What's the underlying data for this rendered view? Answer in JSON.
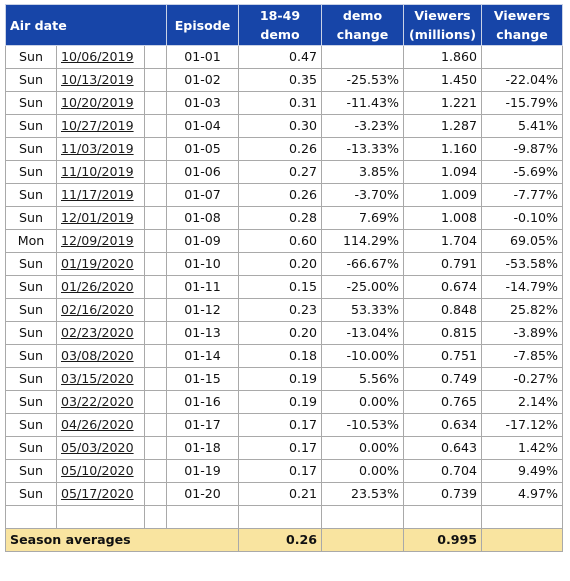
{
  "headers": {
    "air_date": "Air date",
    "episode": "Episode",
    "demo_line1": "18-49",
    "demo_line2": "demo",
    "demo_change_line1": "demo",
    "demo_change_line2": "change",
    "viewers_line1": "Viewers",
    "viewers_line2": "(millions)",
    "viewers_change_line1": "Viewers",
    "viewers_change_line2": "change"
  },
  "rows": [
    {
      "day": "Sun",
      "date": "10/06/2019",
      "episode": "01-01",
      "demo": "0.47",
      "demo_change": "",
      "viewers": "1.860",
      "viewers_change": ""
    },
    {
      "day": "Sun",
      "date": "10/13/2019",
      "episode": "01-02",
      "demo": "0.35",
      "demo_change": "-25.53%",
      "viewers": "1.450",
      "viewers_change": "-22.04%"
    },
    {
      "day": "Sun",
      "date": "10/20/2019",
      "episode": "01-03",
      "demo": "0.31",
      "demo_change": "-11.43%",
      "viewers": "1.221",
      "viewers_change": "-15.79%"
    },
    {
      "day": "Sun",
      "date": "10/27/2019",
      "episode": "01-04",
      "demo": "0.30",
      "demo_change": "-3.23%",
      "viewers": "1.287",
      "viewers_change": "5.41%"
    },
    {
      "day": "Sun",
      "date": "11/03/2019",
      "episode": "01-05",
      "demo": "0.26",
      "demo_change": "-13.33%",
      "viewers": "1.160",
      "viewers_change": "-9.87%"
    },
    {
      "day": "Sun",
      "date": "11/10/2019",
      "episode": "01-06",
      "demo": "0.27",
      "demo_change": "3.85%",
      "viewers": "1.094",
      "viewers_change": "-5.69%"
    },
    {
      "day": "Sun",
      "date": "11/17/2019",
      "episode": "01-07",
      "demo": "0.26",
      "demo_change": "-3.70%",
      "viewers": "1.009",
      "viewers_change": "-7.77%"
    },
    {
      "day": "Sun",
      "date": "12/01/2019",
      "episode": "01-08",
      "demo": "0.28",
      "demo_change": "7.69%",
      "viewers": "1.008",
      "viewers_change": "-0.10%"
    },
    {
      "day": "Mon",
      "date": "12/09/2019",
      "episode": "01-09",
      "demo": "0.60",
      "demo_change": "114.29%",
      "viewers": "1.704",
      "viewers_change": "69.05%"
    },
    {
      "day": "Sun",
      "date": "01/19/2020",
      "episode": "01-10",
      "demo": "0.20",
      "demo_change": "-66.67%",
      "viewers": "0.791",
      "viewers_change": "-53.58%"
    },
    {
      "day": "Sun",
      "date": "01/26/2020",
      "episode": "01-11",
      "demo": "0.15",
      "demo_change": "-25.00%",
      "viewers": "0.674",
      "viewers_change": "-14.79%"
    },
    {
      "day": "Sun",
      "date": "02/16/2020",
      "episode": "01-12",
      "demo": "0.23",
      "demo_change": "53.33%",
      "viewers": "0.848",
      "viewers_change": "25.82%"
    },
    {
      "day": "Sun",
      "date": "02/23/2020",
      "episode": "01-13",
      "demo": "0.20",
      "demo_change": "-13.04%",
      "viewers": "0.815",
      "viewers_change": "-3.89%"
    },
    {
      "day": "Sun",
      "date": "03/08/2020",
      "episode": "01-14",
      "demo": "0.18",
      "demo_change": "-10.00%",
      "viewers": "0.751",
      "viewers_change": "-7.85%"
    },
    {
      "day": "Sun",
      "date": "03/15/2020",
      "episode": "01-15",
      "demo": "0.19",
      "demo_change": "5.56%",
      "viewers": "0.749",
      "viewers_change": "-0.27%"
    },
    {
      "day": "Sun",
      "date": "03/22/2020",
      "episode": "01-16",
      "demo": "0.19",
      "demo_change": "0.00%",
      "viewers": "0.765",
      "viewers_change": "2.14%"
    },
    {
      "day": "Sun",
      "date": "04/26/2020",
      "episode": "01-17",
      "demo": "0.17",
      "demo_change": "-10.53%",
      "viewers": "0.634",
      "viewers_change": "-17.12%"
    },
    {
      "day": "Sun",
      "date": "05/03/2020",
      "episode": "01-18",
      "demo": "0.17",
      "demo_change": "0.00%",
      "viewers": "0.643",
      "viewers_change": "1.42%"
    },
    {
      "day": "Sun",
      "date": "05/10/2020",
      "episode": "01-19",
      "demo": "0.17",
      "demo_change": "0.00%",
      "viewers": "0.704",
      "viewers_change": "9.49%"
    },
    {
      "day": "Sun",
      "date": "05/17/2020",
      "episode": "01-20",
      "demo": "0.21",
      "demo_change": "23.53%",
      "viewers": "0.739",
      "viewers_change": "4.97%"
    }
  ],
  "averages": {
    "label": "Season averages",
    "demo": "0.26",
    "viewers": "0.995"
  }
}
